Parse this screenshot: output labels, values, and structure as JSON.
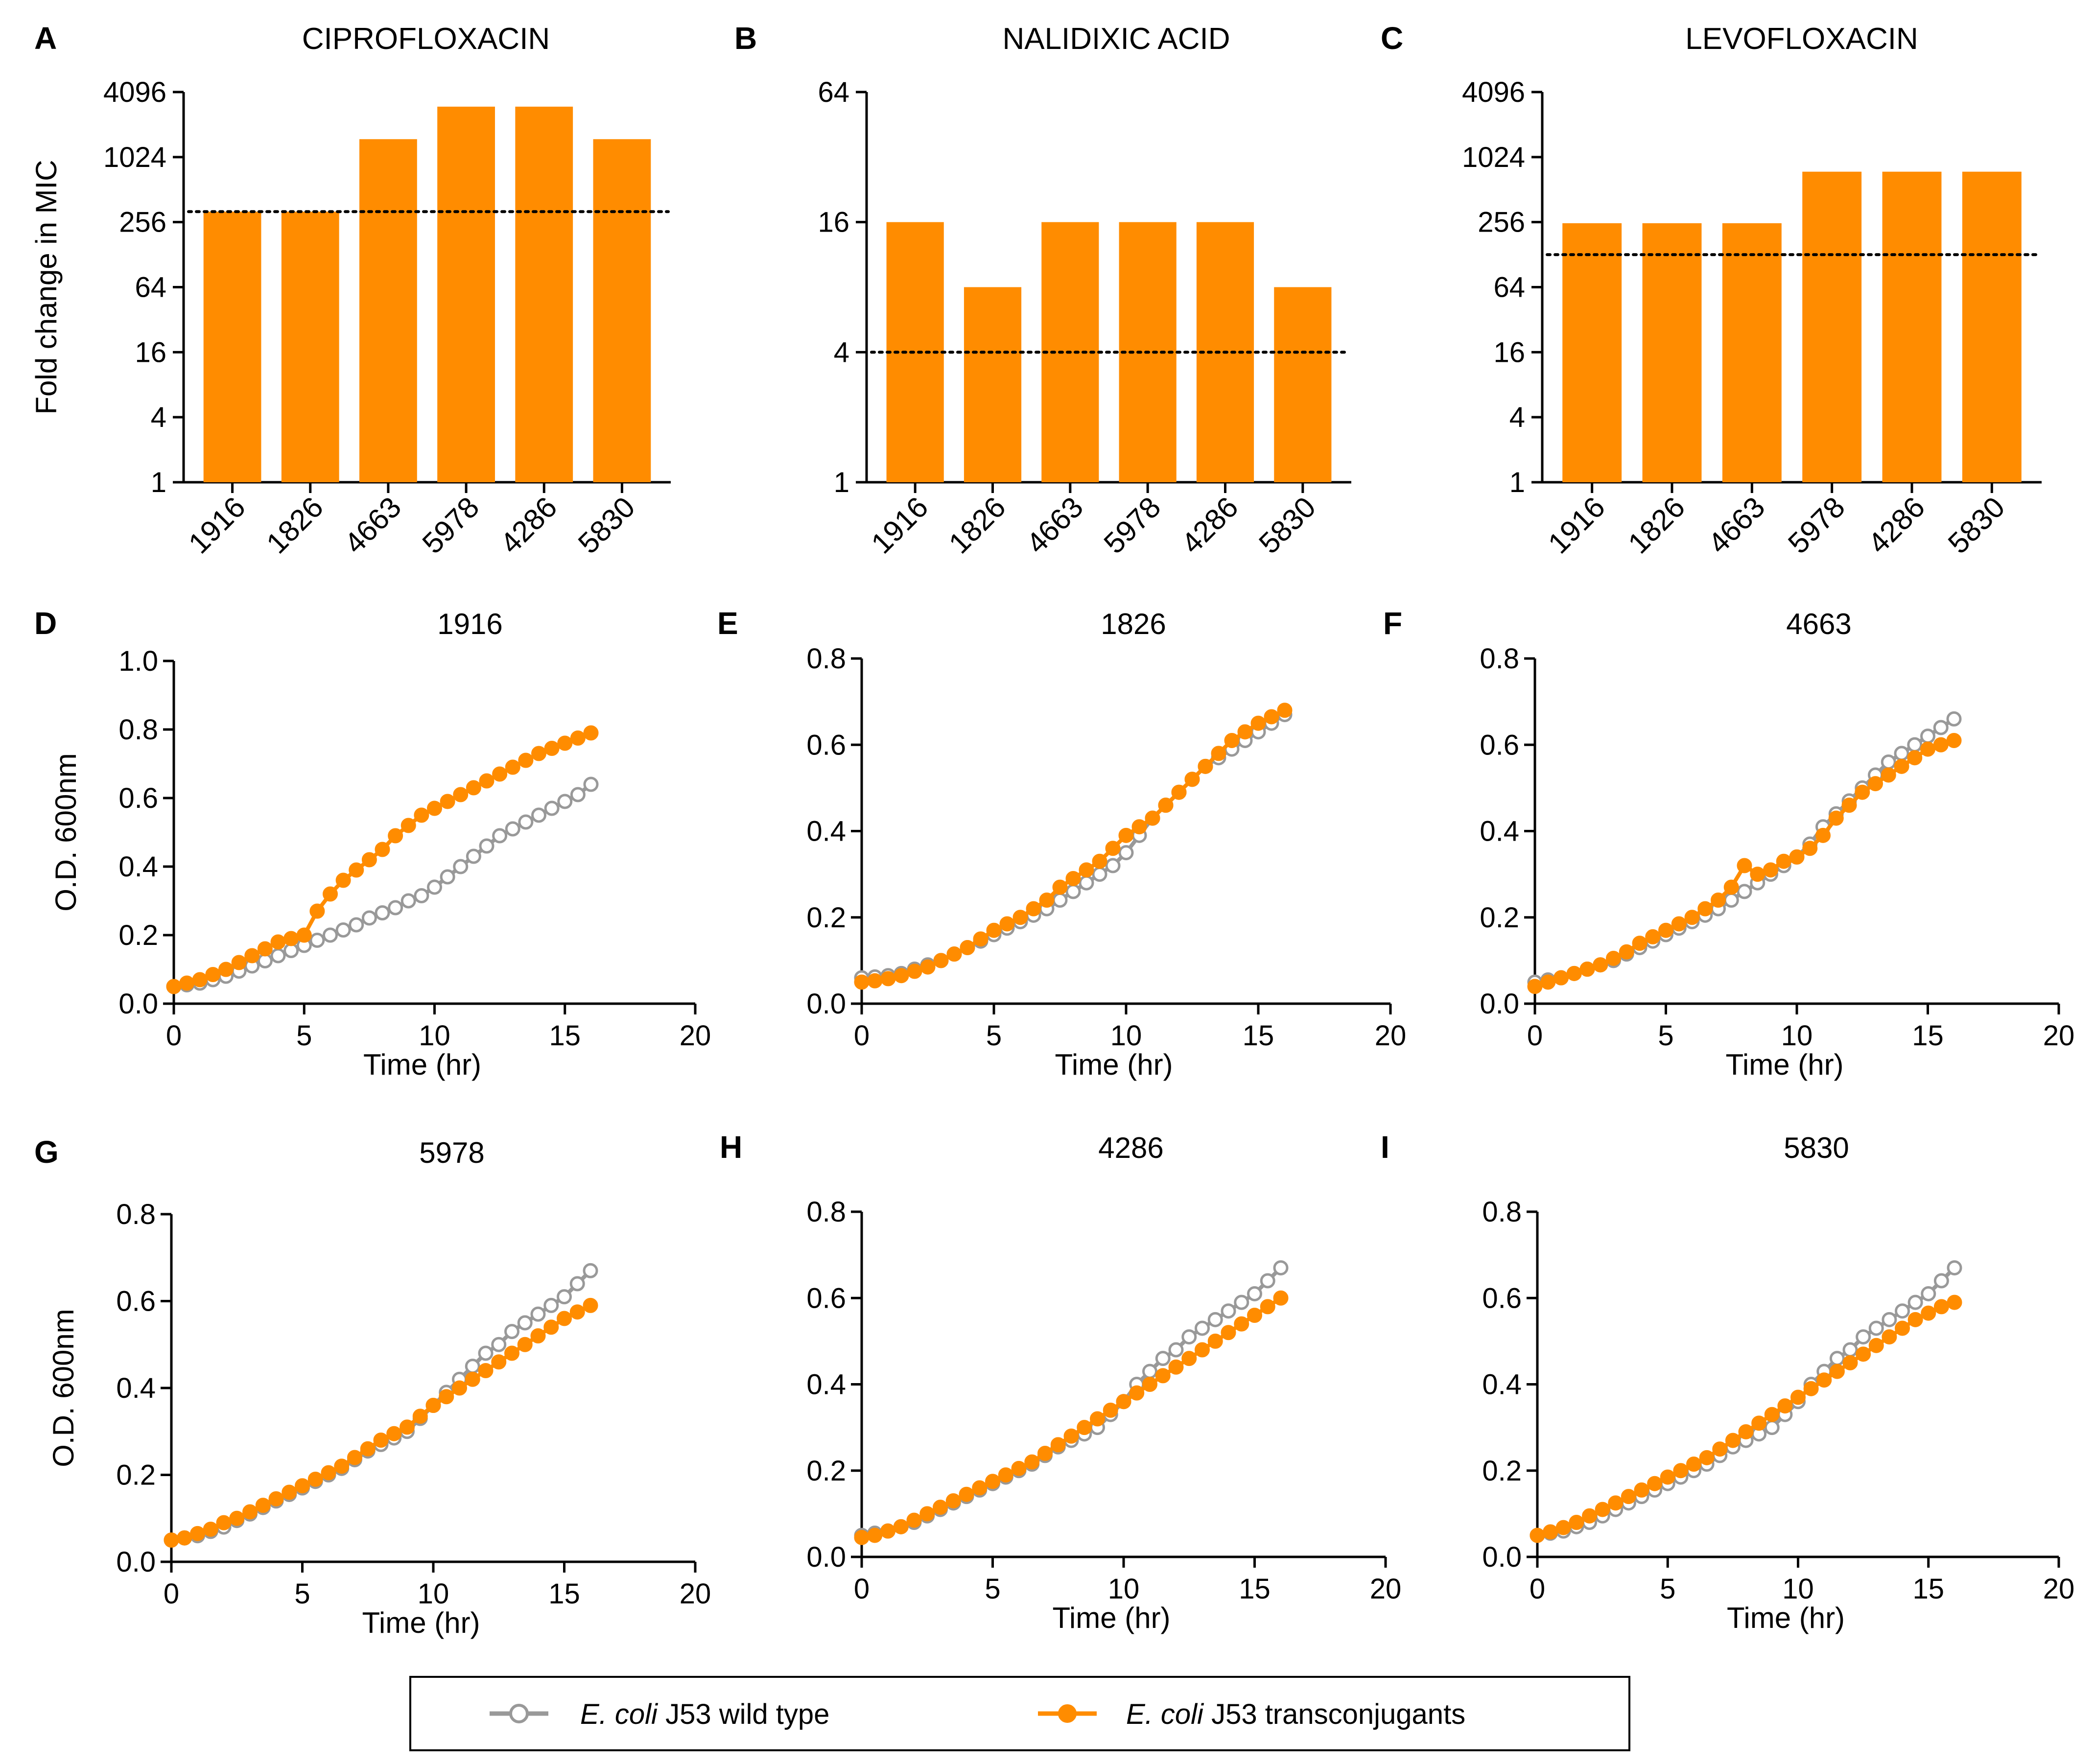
{
  "figure": {
    "colors": {
      "orange": "#ff8c00",
      "gray": "#999999",
      "axis": "#000000"
    },
    "legend": {
      "items": [
        {
          "italic": "E. coli",
          "rest": " J53 wild type",
          "marker": "open-circle",
          "color": "#999999"
        },
        {
          "italic": "E. coli",
          "rest": " J53 transconjugants",
          "marker": "filled-circle",
          "color": "#ff8c00"
        }
      ]
    }
  },
  "chart_data": [
    {
      "panel": "A",
      "type": "bar",
      "title": "CIPROFLOXACIN",
      "ylabel": "Fold change in MIC",
      "yscale": "log2",
      "ylim": [
        1,
        4096
      ],
      "yticks": [
        1,
        4,
        16,
        64,
        256,
        1024,
        4096
      ],
      "categories": [
        "1916",
        "1826",
        "4663",
        "5978",
        "4286",
        "5830"
      ],
      "values": [
        320,
        320,
        1500,
        3000,
        3000,
        1500
      ],
      "reference_line": 320
    },
    {
      "panel": "B",
      "type": "bar",
      "title": "NALIDIXIC ACID",
      "ylabel": "",
      "yscale": "log2",
      "ylim": [
        1,
        64
      ],
      "yticks": [
        1,
        4,
        16,
        64
      ],
      "categories": [
        "1916",
        "1826",
        "4663",
        "5978",
        "4286",
        "5830"
      ],
      "values": [
        16,
        8,
        16,
        16,
        16,
        8
      ],
      "reference_line": 4
    },
    {
      "panel": "C",
      "type": "bar",
      "title": "LEVOFLOXACIN",
      "ylabel": "",
      "yscale": "log2",
      "ylim": [
        1,
        4096
      ],
      "yticks": [
        1,
        4,
        16,
        64,
        256,
        1024,
        4096
      ],
      "categories": [
        "1916",
        "1826",
        "4663",
        "5978",
        "4286",
        "5830"
      ],
      "values": [
        250,
        250,
        250,
        750,
        750,
        750
      ],
      "reference_line": 128
    },
    {
      "panel": "D",
      "type": "line",
      "title": "1916",
      "xlabel": "Time (hr)",
      "ylabel": "O.D. 600nm",
      "xlim": [
        0,
        20
      ],
      "xticks": [
        0,
        5,
        10,
        15,
        20
      ],
      "ylim": [
        0,
        1.0
      ],
      "yticks": [
        "0.0",
        "0.2",
        "0.4",
        "0.6",
        "0.8",
        "1.0"
      ],
      "x": [
        0,
        0.5,
        1,
        1.5,
        2,
        2.5,
        3,
        3.5,
        4,
        4.5,
        5,
        5.5,
        6,
        6.5,
        7,
        7.5,
        8,
        8.5,
        9,
        9.5,
        10,
        10.5,
        11,
        11.5,
        12,
        12.5,
        13,
        13.5,
        14,
        14.5,
        15,
        15.5,
        16
      ],
      "series": [
        {
          "name": "E. coli J53 wild type",
          "values": [
            0.05,
            0.055,
            0.06,
            0.07,
            0.08,
            0.095,
            0.11,
            0.125,
            0.14,
            0.155,
            0.17,
            0.185,
            0.2,
            0.215,
            0.23,
            0.25,
            0.265,
            0.28,
            0.3,
            0.315,
            0.34,
            0.37,
            0.4,
            0.43,
            0.46,
            0.49,
            0.51,
            0.53,
            0.55,
            0.57,
            0.59,
            0.61,
            0.64
          ]
        },
        {
          "name": "E. coli J53 transconjugants",
          "values": [
            0.05,
            0.06,
            0.07,
            0.085,
            0.1,
            0.12,
            0.14,
            0.16,
            0.18,
            0.19,
            0.2,
            0.27,
            0.32,
            0.36,
            0.39,
            0.42,
            0.45,
            0.49,
            0.52,
            0.55,
            0.57,
            0.59,
            0.61,
            0.63,
            0.65,
            0.67,
            0.69,
            0.71,
            0.73,
            0.745,
            0.76,
            0.775,
            0.79
          ]
        }
      ]
    },
    {
      "panel": "E",
      "type": "line",
      "title": "1826",
      "xlabel": "Time (hr)",
      "ylabel": "",
      "xlim": [
        0,
        20
      ],
      "xticks": [
        0,
        5,
        10,
        15,
        20
      ],
      "ylim": [
        0,
        0.8
      ],
      "yticks": [
        "0.0",
        "0.2",
        "0.4",
        "0.6",
        "0.8"
      ],
      "x": [
        0,
        0.5,
        1,
        1.5,
        2,
        2.5,
        3,
        3.5,
        4,
        4.5,
        5,
        5.5,
        6,
        6.5,
        7,
        7.5,
        8,
        8.5,
        9,
        9.5,
        10,
        10.5,
        11,
        11.5,
        12,
        12.5,
        13,
        13.5,
        14,
        14.5,
        15,
        15.5,
        16
      ],
      "series": [
        {
          "name": "E. coli J53 wild type",
          "values": [
            0.06,
            0.062,
            0.065,
            0.07,
            0.08,
            0.09,
            0.1,
            0.115,
            0.13,
            0.145,
            0.16,
            0.175,
            0.19,
            0.205,
            0.22,
            0.24,
            0.26,
            0.28,
            0.3,
            0.32,
            0.35,
            0.39,
            0.43,
            0.46,
            0.49,
            0.52,
            0.55,
            0.57,
            0.59,
            0.61,
            0.63,
            0.65,
            0.67
          ]
        },
        {
          "name": "E. coli J53 transconjugants",
          "values": [
            0.05,
            0.053,
            0.058,
            0.065,
            0.075,
            0.085,
            0.1,
            0.115,
            0.13,
            0.15,
            0.17,
            0.185,
            0.2,
            0.22,
            0.24,
            0.27,
            0.29,
            0.31,
            0.33,
            0.36,
            0.39,
            0.41,
            0.43,
            0.46,
            0.49,
            0.52,
            0.55,
            0.58,
            0.61,
            0.63,
            0.65,
            0.665,
            0.68
          ]
        }
      ]
    },
    {
      "panel": "F",
      "type": "line",
      "title": "4663",
      "xlabel": "Time (hr)",
      "ylabel": "",
      "xlim": [
        0,
        20
      ],
      "xticks": [
        0,
        5,
        10,
        15,
        20
      ],
      "ylim": [
        0,
        0.8
      ],
      "yticks": [
        "0.0",
        "0.2",
        "0.4",
        "0.6",
        "0.8"
      ],
      "x": [
        0,
        0.5,
        1,
        1.5,
        2,
        2.5,
        3,
        3.5,
        4,
        4.5,
        5,
        5.5,
        6,
        6.5,
        7,
        7.5,
        8,
        8.5,
        9,
        9.5,
        10,
        10.5,
        11,
        11.5,
        12,
        12.5,
        13,
        13.5,
        14,
        14.5,
        15,
        15.5,
        16
      ],
      "series": [
        {
          "name": "E. coli J53 wild type",
          "values": [
            0.05,
            0.055,
            0.06,
            0.07,
            0.08,
            0.09,
            0.1,
            0.115,
            0.13,
            0.145,
            0.16,
            0.175,
            0.19,
            0.205,
            0.22,
            0.24,
            0.26,
            0.28,
            0.3,
            0.32,
            0.34,
            0.37,
            0.41,
            0.44,
            0.47,
            0.5,
            0.53,
            0.56,
            0.58,
            0.6,
            0.62,
            0.64,
            0.66
          ]
        },
        {
          "name": "E. coli J53 transconjugants",
          "values": [
            0.04,
            0.05,
            0.06,
            0.07,
            0.08,
            0.09,
            0.105,
            0.12,
            0.14,
            0.155,
            0.17,
            0.185,
            0.2,
            0.22,
            0.24,
            0.27,
            0.32,
            0.3,
            0.31,
            0.33,
            0.34,
            0.36,
            0.39,
            0.43,
            0.46,
            0.49,
            0.51,
            0.53,
            0.55,
            0.57,
            0.59,
            0.6,
            0.61
          ]
        }
      ]
    },
    {
      "panel": "G",
      "type": "line",
      "title": "5978",
      "xlabel": "Time (hr)",
      "ylabel": "O.D. 600nm",
      "xlim": [
        0,
        20
      ],
      "xticks": [
        0,
        5,
        10,
        15,
        20
      ],
      "ylim": [
        0,
        0.8
      ],
      "yticks": [
        "0.0",
        "0.2",
        "0.4",
        "0.6",
        "0.8"
      ],
      "x": [
        0,
        0.5,
        1,
        1.5,
        2,
        2.5,
        3,
        3.5,
        4,
        4.5,
        5,
        5.5,
        6,
        6.5,
        7,
        7.5,
        8,
        8.5,
        9,
        9.5,
        10,
        10.5,
        11,
        11.5,
        12,
        12.5,
        13,
        13.5,
        14,
        14.5,
        15,
        15.5,
        16
      ],
      "series": [
        {
          "name": "E. coli J53 wild type",
          "values": [
            0.05,
            0.055,
            0.06,
            0.07,
            0.08,
            0.095,
            0.11,
            0.125,
            0.14,
            0.155,
            0.17,
            0.185,
            0.2,
            0.215,
            0.235,
            0.255,
            0.27,
            0.285,
            0.3,
            0.33,
            0.36,
            0.39,
            0.42,
            0.45,
            0.48,
            0.5,
            0.53,
            0.55,
            0.57,
            0.59,
            0.61,
            0.64,
            0.67
          ]
        },
        {
          "name": "E. coli J53 transconjugants",
          "values": [
            0.05,
            0.055,
            0.065,
            0.075,
            0.09,
            0.1,
            0.115,
            0.13,
            0.145,
            0.16,
            0.175,
            0.19,
            0.205,
            0.22,
            0.24,
            0.26,
            0.28,
            0.295,
            0.31,
            0.335,
            0.36,
            0.38,
            0.4,
            0.42,
            0.44,
            0.46,
            0.48,
            0.5,
            0.52,
            0.54,
            0.56,
            0.575,
            0.59
          ]
        }
      ]
    },
    {
      "panel": "H",
      "type": "line",
      "title": "4286",
      "xlabel": "Time (hr)",
      "ylabel": "",
      "xlim": [
        0,
        20
      ],
      "xticks": [
        0,
        5,
        10,
        15,
        20
      ],
      "ylim": [
        0,
        0.8
      ],
      "yticks": [
        "0.0",
        "0.2",
        "0.4",
        "0.6",
        "0.8"
      ],
      "x": [
        0,
        0.5,
        1,
        1.5,
        2,
        2.5,
        3,
        3.5,
        4,
        4.5,
        5,
        5.5,
        6,
        6.5,
        7,
        7.5,
        8,
        8.5,
        9,
        9.5,
        10,
        10.5,
        11,
        11.5,
        12,
        12.5,
        13,
        13.5,
        14,
        14.5,
        15,
        15.5,
        16
      ],
      "series": [
        {
          "name": "E. coli J53 wild type",
          "values": [
            0.05,
            0.055,
            0.06,
            0.07,
            0.08,
            0.095,
            0.11,
            0.125,
            0.14,
            0.155,
            0.17,
            0.185,
            0.2,
            0.215,
            0.235,
            0.255,
            0.27,
            0.285,
            0.3,
            0.33,
            0.36,
            0.4,
            0.43,
            0.46,
            0.48,
            0.51,
            0.53,
            0.55,
            0.57,
            0.59,
            0.61,
            0.64,
            0.67
          ]
        },
        {
          "name": "E. coli J53 transconjugants",
          "values": [
            0.045,
            0.05,
            0.06,
            0.07,
            0.085,
            0.1,
            0.115,
            0.13,
            0.145,
            0.16,
            0.175,
            0.19,
            0.205,
            0.22,
            0.24,
            0.26,
            0.28,
            0.3,
            0.32,
            0.34,
            0.36,
            0.38,
            0.4,
            0.42,
            0.44,
            0.46,
            0.48,
            0.5,
            0.52,
            0.54,
            0.56,
            0.58,
            0.6
          ]
        }
      ]
    },
    {
      "panel": "I",
      "type": "line",
      "title": "5830",
      "xlabel": "Time (hr)",
      "ylabel": "",
      "xlim": [
        0,
        20
      ],
      "xticks": [
        0,
        5,
        10,
        15,
        20
      ],
      "ylim": [
        0,
        0.8
      ],
      "yticks": [
        "0.0",
        "0.2",
        "0.4",
        "0.6",
        "0.8"
      ],
      "x": [
        0,
        0.5,
        1,
        1.5,
        2,
        2.5,
        3,
        3.5,
        4,
        4.5,
        5,
        5.5,
        6,
        6.5,
        7,
        7.5,
        8,
        8.5,
        9,
        9.5,
        10,
        10.5,
        11,
        11.5,
        12,
        12.5,
        13,
        13.5,
        14,
        14.5,
        15,
        15.5,
        16
      ],
      "series": [
        {
          "name": "E. coli J53 wild type",
          "values": [
            0.05,
            0.055,
            0.06,
            0.07,
            0.08,
            0.095,
            0.11,
            0.125,
            0.14,
            0.155,
            0.17,
            0.185,
            0.2,
            0.215,
            0.235,
            0.255,
            0.27,
            0.285,
            0.3,
            0.33,
            0.36,
            0.4,
            0.43,
            0.46,
            0.48,
            0.51,
            0.53,
            0.55,
            0.57,
            0.59,
            0.61,
            0.64,
            0.67
          ]
        },
        {
          "name": "E. coli J53 transconjugants",
          "values": [
            0.05,
            0.058,
            0.068,
            0.08,
            0.095,
            0.11,
            0.125,
            0.14,
            0.155,
            0.17,
            0.185,
            0.2,
            0.215,
            0.23,
            0.25,
            0.27,
            0.29,
            0.31,
            0.33,
            0.35,
            0.37,
            0.39,
            0.41,
            0.43,
            0.45,
            0.47,
            0.49,
            0.51,
            0.53,
            0.55,
            0.565,
            0.58,
            0.59
          ]
        }
      ]
    }
  ]
}
